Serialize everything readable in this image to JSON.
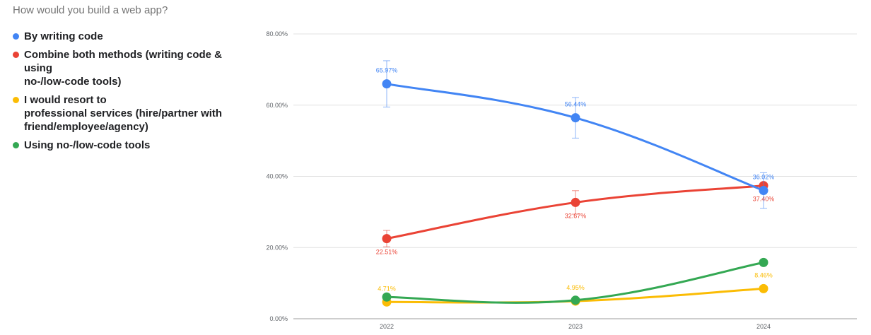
{
  "title": "How would you build a web app?",
  "chart_data": {
    "type": "line",
    "title": "How would you build a web app?",
    "xlabel": "",
    "ylabel": "",
    "categories": [
      "2022",
      "2023",
      "2024"
    ],
    "ylim": [
      0,
      80
    ],
    "yticks": [
      "0.00%",
      "20.00%",
      "40.00%",
      "60.00%",
      "80.00%"
    ],
    "ytick_values": [
      0,
      20,
      40,
      60,
      80
    ],
    "grid": true,
    "legend": "left",
    "series": [
      {
        "name": "By writing code",
        "color": "#4285f4",
        "values": [
          65.97,
          56.44,
          36.02
        ],
        "labels": [
          "65.97%",
          "56.44%",
          "36.02%"
        ],
        "label_pos": [
          "above",
          "above",
          "above"
        ],
        "error": [
          6.5,
          5.7,
          5.0
        ]
      },
      {
        "name": "Combine both methods (writing code & using\nno-/low-code tools)",
        "color": "#ea4335",
        "values": [
          22.51,
          32.67,
          37.4
        ],
        "labels": [
          "22.51%",
          "32.67%",
          "37.40%"
        ],
        "label_pos": [
          "below",
          "below",
          "below"
        ],
        "error": [
          2.3,
          3.3,
          0
        ]
      },
      {
        "name": "I would resort to\nprofessional services (hire/partner with\nfriend/employee/agency)",
        "color": "#fbbc04",
        "values": [
          4.71,
          4.95,
          8.46
        ],
        "labels": [
          "4.71%",
          "4.95%",
          "8.46%"
        ],
        "label_pos": [
          "above",
          "above",
          "above"
        ],
        "error": [
          0,
          0,
          0
        ]
      },
      {
        "name": "Using no-/low-code tools",
        "color": "#34a853",
        "values": [
          6.1,
          5.2,
          15.8
        ],
        "labels": [],
        "label_pos": [],
        "error": [
          0,
          0,
          0
        ]
      }
    ]
  }
}
